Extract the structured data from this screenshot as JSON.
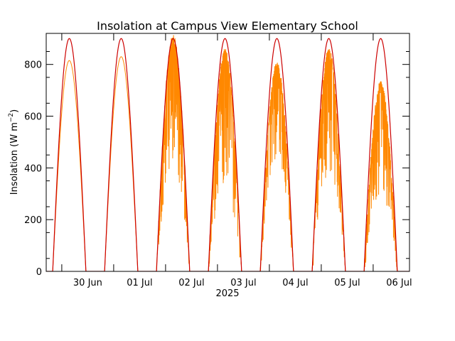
{
  "chart_data": {
    "type": "line",
    "title": "Insolation at Campus View Elementary School",
    "ylabel_main": "Insolation (W m",
    "ylabel_sup": "−2",
    "ylabel_close": ")",
    "xlabel": "2025",
    "xlim_days": [
      -0.3,
      6.7
    ],
    "ylim": [
      0,
      920
    ],
    "x_tick_labels": [
      "30 Jun",
      "01 Jul",
      "02 Jul",
      "03 Jul",
      "04 Jul",
      "05 Jul",
      "06 Jul"
    ],
    "y_ticks": [
      0,
      200,
      400,
      600,
      800
    ],
    "grid": false,
    "series": [
      {
        "color": "#cc0000",
        "description_kind": "clear-sky",
        "peak": 900,
        "solar_noon_fraction": 0.645,
        "day_length_fraction": 0.64
      },
      {
        "color": "#ff8800",
        "description_kind": "measured",
        "daily_peaks": [
          810,
          815,
          830,
          900,
          845,
          800,
          850,
          720
        ],
        "daily_variability": [
          0.05,
          0.05,
          0.05,
          0.55,
          0.6,
          0.45,
          0.55,
          0.6
        ]
      }
    ]
  }
}
